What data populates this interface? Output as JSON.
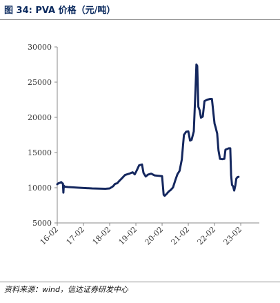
{
  "title": "图 34:  PVA 价格（元/吨）",
  "source": "资料来源：wind，信达证券研发中心",
  "colors": {
    "line": "#14275e",
    "axis": "#888888",
    "title": "#0b2a5e"
  },
  "chart_data": {
    "type": "line",
    "title": "图 34:  PVA 价格（元/吨）",
    "xlabel": "",
    "ylabel": "",
    "ylim": [
      5000,
      30000
    ],
    "yticks": [
      5000,
      10000,
      15000,
      20000,
      25000,
      30000
    ],
    "ytick_labels": [
      "5000",
      "10000",
      "15000",
      "20000",
      "25000",
      "30000"
    ],
    "xticks": [
      0,
      12,
      24,
      36,
      48,
      60,
      72,
      84
    ],
    "xtick_labels": [
      "16-02",
      "17-02",
      "18-02",
      "19-02",
      "20-02",
      "21-02",
      "22-02",
      "23-02"
    ],
    "xlim": [
      0,
      92.5
    ],
    "grid": false,
    "legend": "none",
    "series": [
      {
        "name": "",
        "points": [
          [
            0,
            10500
          ],
          [
            0.6,
            10650
          ],
          [
            1.2,
            10700
          ],
          [
            1.8,
            10800
          ],
          [
            2.3,
            10650
          ],
          [
            2.6,
            10600
          ],
          [
            2.8,
            9300
          ],
          [
            3.0,
            10300
          ],
          [
            3.4,
            10150
          ],
          [
            5,
            10100
          ],
          [
            10,
            10000
          ],
          [
            16,
            9900
          ],
          [
            22,
            9850
          ],
          [
            24,
            9900
          ],
          [
            25.5,
            10200
          ],
          [
            26.5,
            10550
          ],
          [
            27.5,
            10650
          ],
          [
            28.5,
            11000
          ],
          [
            29.5,
            11300
          ],
          [
            31,
            11800
          ],
          [
            33,
            12000
          ],
          [
            34.5,
            12200
          ],
          [
            35.5,
            11900
          ],
          [
            36.3,
            12400
          ],
          [
            37.5,
            13200
          ],
          [
            38.8,
            13300
          ],
          [
            39.5,
            12100
          ],
          [
            40.5,
            11600
          ],
          [
            41.5,
            11850
          ],
          [
            43,
            12000
          ],
          [
            44.5,
            11750
          ],
          [
            46.5,
            11700
          ],
          [
            48,
            11650
          ],
          [
            48.7,
            9000
          ],
          [
            49.2,
            8850
          ],
          [
            50,
            9100
          ],
          [
            51,
            9450
          ],
          [
            52,
            9700
          ],
          [
            53,
            10050
          ],
          [
            54,
            11000
          ],
          [
            55,
            11900
          ],
          [
            56,
            12400
          ],
          [
            57,
            14000
          ],
          [
            58,
            17500
          ],
          [
            59,
            17950
          ],
          [
            60,
            18000
          ],
          [
            60.8,
            16700
          ],
          [
            61.5,
            16800
          ],
          [
            62.5,
            18000
          ],
          [
            63.3,
            24000
          ],
          [
            63.7,
            27500
          ],
          [
            64.1,
            27300
          ],
          [
            64.6,
            21500
          ],
          [
            65.2,
            21000
          ],
          [
            65.8,
            19950
          ],
          [
            66.6,
            20100
          ],
          [
            67.4,
            22300
          ],
          [
            68.5,
            22500
          ],
          [
            70,
            22600
          ],
          [
            70.8,
            22600
          ],
          [
            71.3,
            21200
          ],
          [
            72,
            19100
          ],
          [
            72.5,
            18600
          ],
          [
            73.2,
            17700
          ],
          [
            73.8,
            15300
          ],
          [
            74.5,
            14100
          ],
          [
            75.5,
            14050
          ],
          [
            76.5,
            14100
          ],
          [
            77,
            15400
          ],
          [
            78.5,
            15600
          ],
          [
            79.2,
            15600
          ],
          [
            79.6,
            11800
          ],
          [
            80,
            10400
          ],
          [
            80.5,
            10200
          ],
          [
            81,
            9600
          ],
          [
            81.5,
            10300
          ],
          [
            82,
            11300
          ],
          [
            82.5,
            11500
          ],
          [
            83,
            11550
          ]
        ]
      }
    ]
  }
}
